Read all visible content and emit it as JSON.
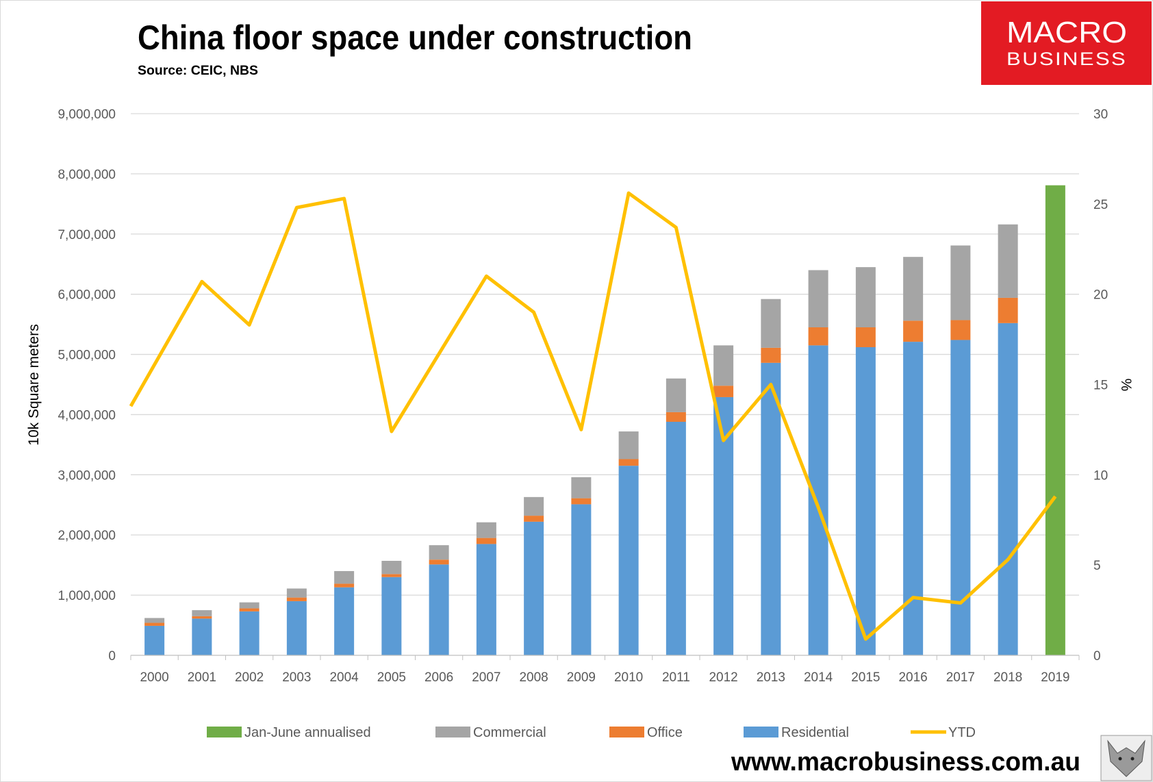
{
  "header": {
    "title": "China floor space under construction",
    "source": "Source: CEIC, NBS"
  },
  "logo": {
    "line1": "MACRO",
    "line2": "BUSINESS",
    "color": "#E31B23"
  },
  "footer": {
    "website": "www.macrobusiness.com.au"
  },
  "chart_data": {
    "type": "bar",
    "stacked": true,
    "title": "China floor space under construction",
    "subtitle": "Source: CEIC, NBS",
    "ylabel": "10k Square meters",
    "y2label": "%",
    "ylim": [
      0,
      9000000
    ],
    "y2lim": [
      0,
      30
    ],
    "yticks": [
      "0",
      "1,000,000",
      "2,000,000",
      "3,000,000",
      "4,000,000",
      "5,000,000",
      "6,000,000",
      "7,000,000",
      "8,000,000",
      "9,000,000"
    ],
    "y2ticks": [
      "0",
      "5",
      "10",
      "15",
      "20",
      "25",
      "30"
    ],
    "grid": true,
    "legend_position": "bottom",
    "categories": [
      "2000",
      "2001",
      "2002",
      "2003",
      "2004",
      "2005",
      "2006",
      "2007",
      "2008",
      "2009",
      "2010",
      "2011",
      "2012",
      "2013",
      "2014",
      "2015",
      "2016",
      "2017",
      "2018",
      "2019"
    ],
    "series": [
      {
        "name": "Residential",
        "type": "bar",
        "color": "#5B9BD5",
        "values": [
          490000,
          610000,
          730000,
          900000,
          1130000,
          1300000,
          1510000,
          1850000,
          2220000,
          2510000,
          3150000,
          3880000,
          4290000,
          4860000,
          5150000,
          5120000,
          5210000,
          5240000,
          5520000,
          null
        ]
      },
      {
        "name": "Office",
        "type": "bar",
        "color": "#ED7D31",
        "values": [
          50000,
          40000,
          50000,
          60000,
          60000,
          50000,
          80000,
          100000,
          100000,
          100000,
          110000,
          160000,
          190000,
          250000,
          300000,
          330000,
          350000,
          330000,
          420000,
          null
        ]
      },
      {
        "name": "Commercial",
        "type": "bar",
        "color": "#A5A5A5",
        "values": [
          80000,
          100000,
          100000,
          150000,
          210000,
          220000,
          240000,
          260000,
          310000,
          350000,
          460000,
          560000,
          670000,
          810000,
          950000,
          1000000,
          1060000,
          1240000,
          1220000,
          null
        ]
      },
      {
        "name": "Jan-June annualised",
        "type": "bar",
        "color": "#70AD47",
        "values": [
          null,
          null,
          null,
          null,
          null,
          null,
          null,
          null,
          null,
          null,
          null,
          null,
          null,
          null,
          null,
          null,
          null,
          null,
          null,
          7810000
        ]
      },
      {
        "name": "YTD",
        "type": "line",
        "axis": "right",
        "color": "#FFC000",
        "values": [
          16.1,
          20.7,
          18.3,
          24.8,
          25.3,
          12.4,
          16.7,
          21.0,
          19.0,
          12.5,
          25.6,
          23.7,
          11.9,
          15.0,
          8.2,
          0.9,
          3.2,
          2.9,
          5.3,
          8.8
        ]
      }
    ],
    "legend_order": [
      "Jan-June annualised",
      "Commercial",
      "Office",
      "Residential",
      "YTD"
    ]
  }
}
